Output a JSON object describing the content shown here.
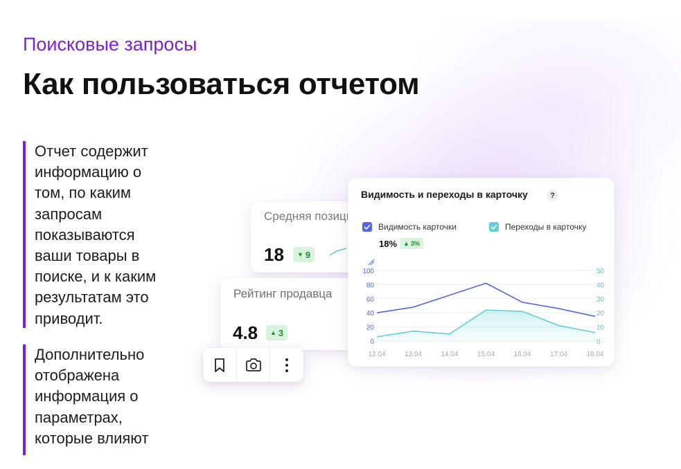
{
  "header": {
    "eyebrow": "Поисковые запросы",
    "title": "Как пользоваться отчетом"
  },
  "paragraphs": [
    [
      "Отчет содержит",
      "информацию о",
      "том, по каким",
      "запросам",
      "показываются",
      "ваши товары в",
      "поиске, и к каким",
      "результатам это",
      "приводит."
    ],
    [
      "Дополнительно",
      "отображена",
      "информация о",
      "параметрах,",
      "которые влияют"
    ]
  ],
  "cards": {
    "avg_position": {
      "label": "Средняя позиция",
      "value": "18",
      "delta": "9",
      "direction": "down"
    },
    "seller_rating": {
      "label": "Рейтинг продавца",
      "value": "4.8",
      "delta": "3",
      "direction": "up"
    }
  },
  "toolbar": {
    "icons": [
      "bookmark-icon",
      "camera-icon",
      "more-vertical-icon"
    ]
  },
  "chart_card": {
    "title": "Видимость и переходы в карточку",
    "help": "?",
    "metric": {
      "value": "18%",
      "delta": "3%"
    }
  },
  "colors": {
    "accent": "#7a1fd6",
    "series_visibility": "#5566e0",
    "series_clicks": "#5cd0d4",
    "badge_bg": "#d9f4dc",
    "badge_text": "#1f8a36"
  },
  "chart_data": {
    "type": "line",
    "categories": [
      "12.04",
      "13.04",
      "14.04",
      "15.04",
      "16.04",
      "17.04",
      "18.04"
    ],
    "series": [
      {
        "name": "Видимость карточки",
        "axis": "left",
        "values": [
          40,
          48,
          65,
          82,
          55,
          46,
          35
        ]
      },
      {
        "name": "Переходы в карточку",
        "axis": "right",
        "values": [
          3,
          7,
          5,
          22,
          21,
          11,
          6
        ]
      }
    ],
    "y_left": {
      "ticks": [
        0,
        20,
        40,
        60,
        80,
        100
      ],
      "range": [
        0,
        100
      ]
    },
    "y_right": {
      "ticks": [
        0,
        10,
        20,
        30,
        40,
        50
      ],
      "range": [
        0,
        50
      ]
    },
    "grid": true,
    "legend": "top-left"
  }
}
